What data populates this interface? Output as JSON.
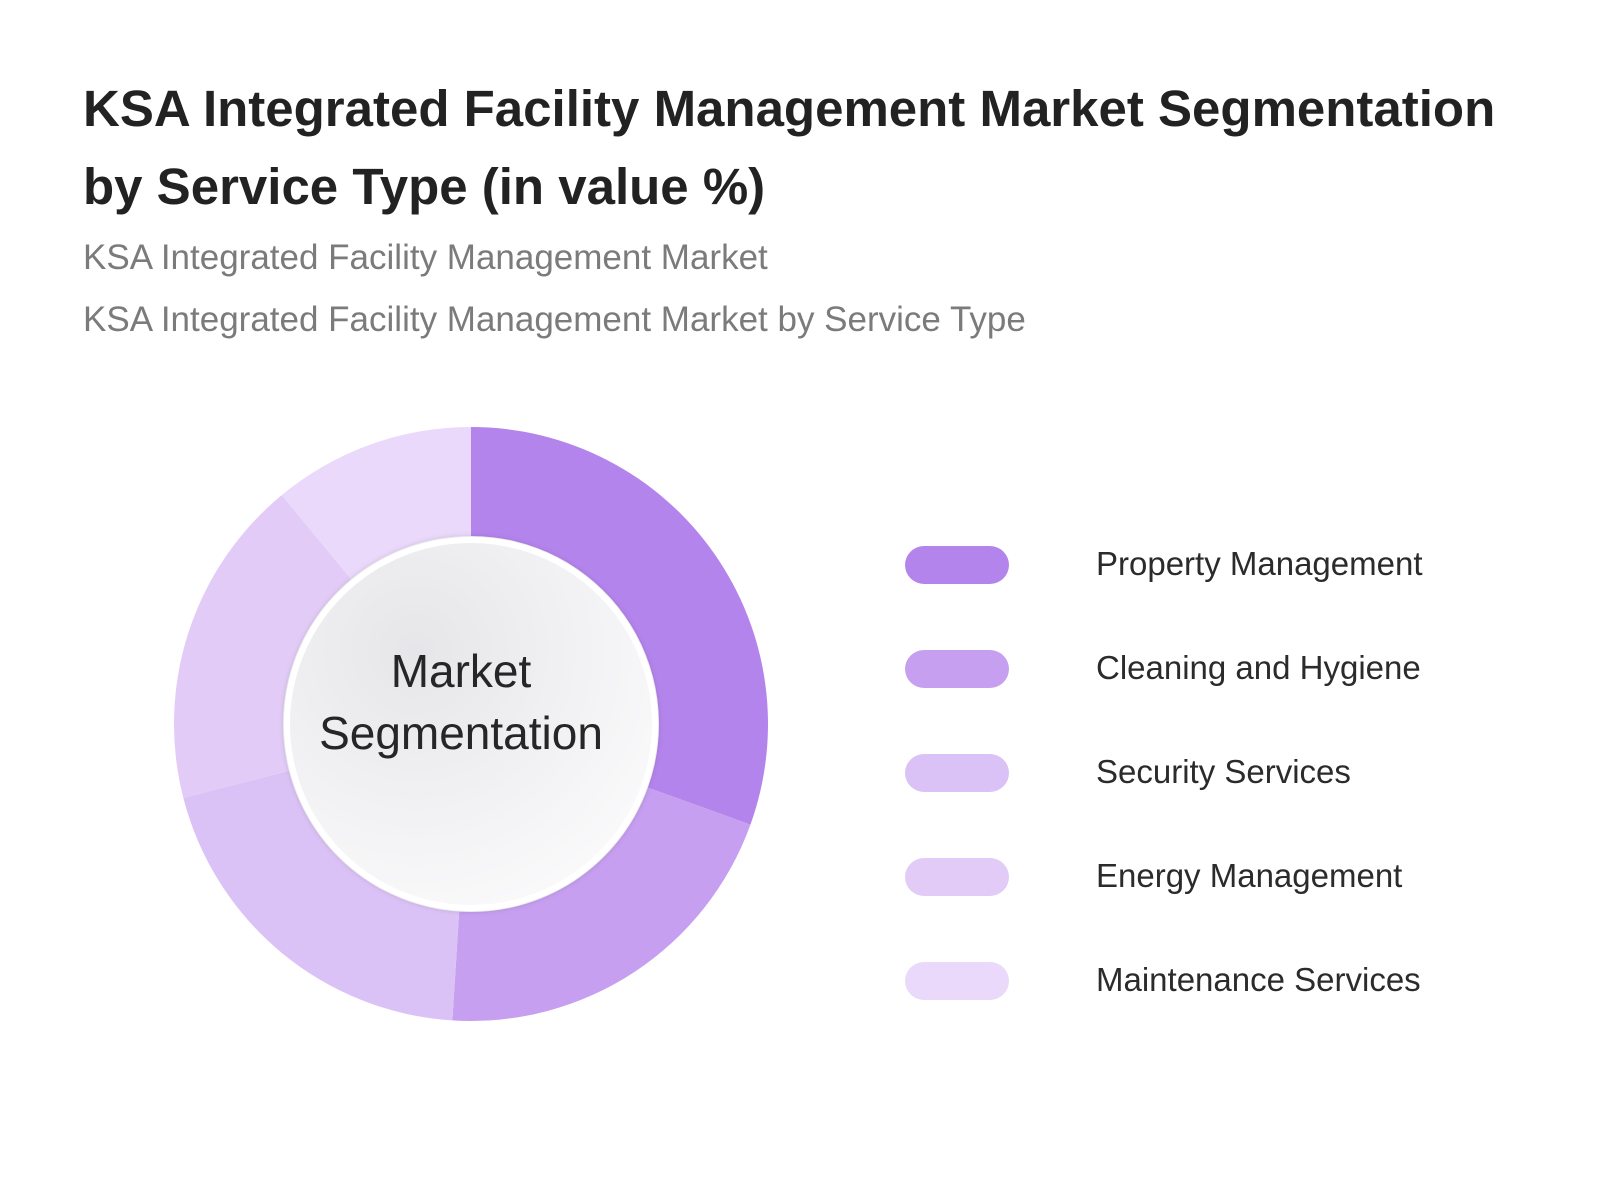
{
  "header": {
    "title": "KSA Integrated Facility Management Market Segmentation by Service Type (in value %)",
    "subtitle_1": "KSA Integrated Facility Management Market",
    "subtitle_2": "KSA Integrated Facility Management Market by Service Type"
  },
  "center_label": {
    "line1": "Market",
    "line2": "Segmentation"
  },
  "chart_data": {
    "type": "pie",
    "style": "donut",
    "categories": [
      "Property Management",
      "Cleaning and Hygiene",
      "Security Services",
      "Energy Management",
      "Maintenance Services"
    ],
    "values": [
      30.5,
      20.5,
      20,
      18,
      11
    ],
    "colors": [
      "#b484ed",
      "#c69ff0",
      "#dbc2f6",
      "#e2ccf7",
      "#ead9fa"
    ],
    "legend": "right"
  }
}
